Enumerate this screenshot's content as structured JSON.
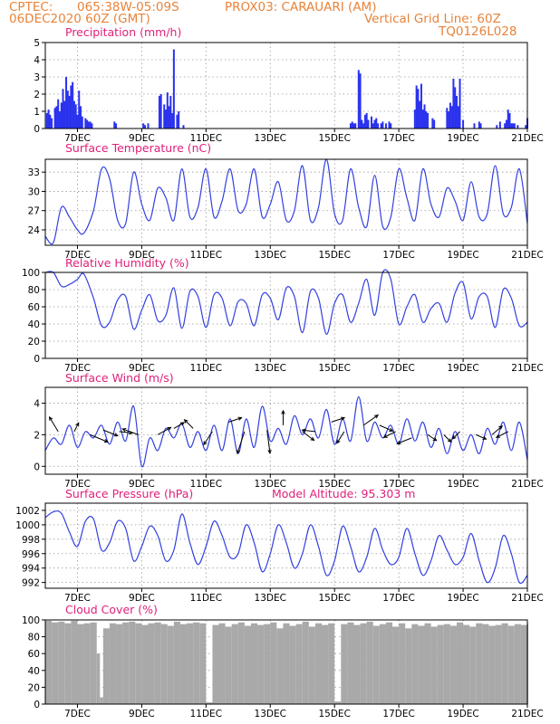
{
  "header": {
    "line1_left": "CPTEC:",
    "line1_coords": "065:38W-05:09S",
    "line1_station": "PROX03: CARAUARI (AM)",
    "line2_date": "06DEC2020 60Z (GMT)",
    "line2_grid": "Vertical Grid Line: 60Z",
    "line3_code": "TQ0126L028"
  },
  "colors": {
    "series": "#3340e0",
    "bar": "#2a32ee",
    "cloud": "#a9a9a9",
    "title": "#e0207a",
    "header": "#e8833a",
    "arrow": "#000000"
  },
  "x_axis": {
    "tick_labels": [
      "7DEC",
      "9DEC",
      "11DEC",
      "13DEC",
      "15DEC",
      "17DEC",
      "19DEC",
      "21DEC"
    ],
    "range_days": [
      6.0,
      21.0
    ]
  },
  "chart_data": [
    {
      "type": "bar",
      "title": "Precipitation (mm/h)",
      "ylim": [
        0,
        5
      ],
      "yticks": [
        "0",
        "1",
        "2",
        "3",
        "4",
        "5"
      ],
      "x": [
        6.05,
        6.1,
        6.15,
        6.2,
        6.3,
        6.35,
        6.4,
        6.45,
        6.5,
        6.55,
        6.6,
        6.65,
        6.7,
        6.75,
        6.8,
        6.85,
        6.9,
        6.95,
        7.0,
        7.05,
        7.1,
        7.15,
        7.25,
        7.3,
        7.35,
        7.4,
        7.45,
        8.15,
        8.2,
        9.05,
        9.1,
        9.2,
        9.55,
        9.6,
        9.7,
        9.75,
        9.8,
        9.85,
        9.9,
        9.95,
        10.0,
        10.1,
        10.15,
        10.3,
        15.5,
        15.55,
        15.6,
        15.65,
        15.75,
        15.8,
        15.85,
        15.9,
        15.95,
        16.0,
        16.05,
        16.15,
        16.2,
        16.25,
        16.3,
        16.35,
        16.45,
        16.5,
        16.6,
        16.7,
        16.75,
        17.5,
        17.55,
        17.6,
        17.65,
        17.7,
        17.75,
        17.8,
        17.85,
        17.9,
        18.05,
        18.1,
        18.5,
        18.55,
        18.6,
        18.65,
        18.7,
        18.75,
        18.8,
        18.85,
        18.9,
        19.0,
        19.35,
        19.5,
        19.55,
        20.05,
        20.15,
        20.3,
        20.35,
        20.4,
        20.45,
        20.5,
        20.55,
        20.6,
        20.7,
        20.95,
        21.0
      ],
      "values": [
        0.9,
        1.1,
        0.8,
        0.6,
        1.2,
        1.3,
        1.7,
        1.0,
        1.5,
        2.3,
        1.6,
        3.0,
        2.2,
        1.9,
        2.5,
        2.7,
        1.6,
        1.4,
        0.8,
        2.2,
        1.3,
        0.7,
        0.6,
        0.5,
        0.4,
        0.4,
        0.3,
        0.4,
        0.3,
        0.3,
        0.2,
        0.3,
        1.9,
        2.0,
        1.4,
        1.1,
        2.1,
        1.3,
        1.9,
        0.9,
        4.6,
        0.8,
        1.0,
        0.2,
        0.3,
        0.4,
        0.3,
        0.3,
        3.4,
        3.2,
        0.5,
        0.3,
        0.8,
        0.9,
        0.5,
        0.7,
        0.3,
        0.5,
        0.6,
        0.3,
        0.3,
        0.4,
        0.3,
        0.4,
        0.3,
        1.1,
        2.5,
        2.3,
        1.6,
        2.6,
        1.1,
        1.4,
        1.0,
        0.9,
        0.6,
        0.5,
        1.2,
        1.0,
        1.5,
        1.3,
        2.9,
        2.4,
        1.9,
        1.3,
        2.9,
        0.5,
        0.3,
        0.4,
        0.3,
        0.2,
        0.4,
        0.3,
        0.5,
        1.1,
        0.9,
        0.3,
        0.3,
        0.3,
        0.2,
        0.2,
        0.6
      ]
    },
    {
      "type": "line",
      "title": "Surface Temperature (nC)",
      "ylim": [
        21.6,
        35.0
      ],
      "yticks": [
        "24",
        "27",
        "30",
        "33"
      ],
      "x": [
        6.0,
        6.25,
        6.5,
        6.75,
        7.0,
        7.2,
        7.5,
        7.75,
        8.0,
        8.25,
        8.5,
        8.75,
        9.0,
        9.25,
        9.5,
        9.75,
        10.0,
        10.25,
        10.5,
        10.75,
        11.0,
        11.25,
        11.5,
        11.75,
        12.0,
        12.25,
        12.5,
        12.75,
        13.0,
        13.25,
        13.5,
        13.75,
        14.0,
        14.25,
        14.5,
        14.75,
        15.0,
        15.25,
        15.5,
        15.75,
        16.0,
        16.25,
        16.5,
        16.75,
        17.0,
        17.25,
        17.5,
        17.75,
        18.0,
        18.25,
        18.5,
        18.75,
        19.0,
        19.25,
        19.5,
        19.75,
        20.0,
        20.25,
        20.5,
        20.75,
        21.0
      ],
      "values": [
        23.0,
        22.0,
        27.5,
        26.0,
        24.0,
        23.5,
        27.0,
        33.5,
        32.0,
        25.5,
        25.0,
        33.0,
        28.0,
        25.5,
        30.5,
        29.0,
        25.5,
        33.5,
        26.0,
        27.5,
        33.5,
        26.0,
        28.5,
        33.5,
        27.0,
        28.0,
        33.5,
        26.0,
        28.0,
        31.5,
        25.5,
        27.0,
        34.0,
        25.5,
        27.5,
        35.0,
        26.5,
        25.5,
        33.5,
        27.5,
        24.5,
        32.5,
        24.5,
        26.0,
        33.5,
        29.0,
        25.5,
        33.5,
        28.0,
        26.0,
        30.5,
        28.5,
        25.5,
        31.5,
        26.0,
        26.5,
        34.0,
        26.5,
        27.5,
        33.5,
        25.0
      ]
    },
    {
      "type": "line",
      "title": "Relative Humidity (%)",
      "ylim": [
        0,
        100
      ],
      "yticks": [
        "0",
        "20",
        "40",
        "60",
        "80",
        "100"
      ],
      "x": [
        6.0,
        6.25,
        6.5,
        6.75,
        7.0,
        7.2,
        7.5,
        7.75,
        8.0,
        8.25,
        8.5,
        8.75,
        9.0,
        9.25,
        9.5,
        9.75,
        10.0,
        10.25,
        10.5,
        10.75,
        11.0,
        11.25,
        11.5,
        11.75,
        12.0,
        12.25,
        12.5,
        12.75,
        13.0,
        13.25,
        13.5,
        13.75,
        14.0,
        14.25,
        14.5,
        14.75,
        15.0,
        15.25,
        15.5,
        15.75,
        16.0,
        16.25,
        16.5,
        16.75,
        17.0,
        17.25,
        17.5,
        17.75,
        18.0,
        18.25,
        18.5,
        18.75,
        19.0,
        19.25,
        19.5,
        19.75,
        20.0,
        20.25,
        20.5,
        20.75,
        21.0
      ],
      "values": [
        100,
        100,
        84,
        86,
        92,
        98,
        70,
        38,
        42,
        68,
        72,
        34,
        56,
        74,
        44,
        50,
        82,
        35,
        78,
        72,
        36,
        74,
        70,
        38,
        66,
        64,
        38,
        74,
        70,
        45,
        82,
        72,
        30,
        78,
        70,
        28,
        64,
        74,
        42,
        64,
        92,
        50,
        100,
        92,
        40,
        60,
        74,
        42,
        58,
        64,
        42,
        76,
        88,
        46,
        72,
        72,
        36,
        80,
        70,
        38,
        42
      ]
    },
    {
      "type": "line",
      "title": "Surface Wind (m/s)",
      "ylim": [
        -0.5,
        5.0
      ],
      "yticks": [
        "0",
        "2",
        "4"
      ],
      "x": [
        6.0,
        6.25,
        6.5,
        6.75,
        7.0,
        7.25,
        7.5,
        7.75,
        8.0,
        8.25,
        8.5,
        8.75,
        9.0,
        9.25,
        9.5,
        9.75,
        10.0,
        10.25,
        10.5,
        10.75,
        11.0,
        11.25,
        11.5,
        11.75,
        12.0,
        12.25,
        12.5,
        12.75,
        13.0,
        13.25,
        13.5,
        13.75,
        14.0,
        14.25,
        14.5,
        14.75,
        15.0,
        15.25,
        15.5,
        15.75,
        16.0,
        16.25,
        16.5,
        16.75,
        17.0,
        17.25,
        17.5,
        17.75,
        18.0,
        18.25,
        18.5,
        18.75,
        19.0,
        19.25,
        19.5,
        19.75,
        20.0,
        20.25,
        20.5,
        20.75,
        21.0
      ],
      "values": [
        1.0,
        1.8,
        1.4,
        2.6,
        1.2,
        2.2,
        1.8,
        2.6,
        1.4,
        2.8,
        1.6,
        3.8,
        0.0,
        1.8,
        1.0,
        2.4,
        1.8,
        2.7,
        1.2,
        2.2,
        1.0,
        2.6,
        1.0,
        3.0,
        0.8,
        3.0,
        1.2,
        3.8,
        1.6,
        2.4,
        1.4,
        3.2,
        2.0,
        3.0,
        1.8,
        3.6,
        1.4,
        3.0,
        1.6,
        4.4,
        1.6,
        2.8,
        1.8,
        2.6,
        1.4,
        3.0,
        1.6,
        2.8,
        1.2,
        2.4,
        0.8,
        2.2,
        1.0,
        2.0,
        0.8,
        2.4,
        1.4,
        2.8,
        1.0,
        2.8,
        0.4
      ],
      "vectors": {
        "x": [
          6.4,
          6.9,
          7.4,
          7.8,
          8.3,
          8.9,
          9.5,
          10.0,
          10.6,
          11.2,
          11.7,
          12.2,
          12.9,
          13.4,
          14.0,
          14.4,
          14.9,
          15.3,
          15.9,
          16.4,
          16.9,
          17.4,
          17.9,
          18.4,
          18.9,
          19.4,
          19.9,
          20.4
        ],
        "y": [
          2.2,
          2.2,
          2.0,
          2.3,
          2.2,
          2.0,
          2.0,
          2.4,
          2.4,
          2.2,
          2.8,
          2.2,
          2.3,
          2.6,
          2.2,
          2.2,
          2.8,
          2.2,
          2.6,
          2.6,
          2.2,
          1.8,
          2.0,
          2.0,
          2.2,
          2.0,
          2.0,
          2.2
        ],
        "u": [
          -0.6,
          0.3,
          1.2,
          1.0,
          0.9,
          -1.1,
          0.9,
          0.7,
          -0.6,
          -0.6,
          0.9,
          -0.5,
          0.2,
          0.0,
          0.8,
          -0.9,
          0.9,
          -0.5,
          1.0,
          0.9,
          -0.8,
          -1.0,
          0.6,
          0.5,
          -0.5,
          0.7,
          0.7,
          -0.8
        ],
        "v": [
          1.0,
          0.6,
          -0.5,
          -0.4,
          -0.1,
          0.4,
          0.5,
          0.4,
          0.6,
          -0.9,
          0.3,
          -1.5,
          -1.6,
          1.0,
          -0.6,
          0.1,
          0.3,
          -0.8,
          0.7,
          -0.4,
          -0.4,
          -0.4,
          -0.4,
          -0.5,
          -0.5,
          -0.3,
          0.6,
          -0.4
        ]
      }
    },
    {
      "type": "line",
      "title": "Surface Pressure (hPa)",
      "annotation": "Model Altitude: 95.303 m",
      "ylim": [
        991.2,
        1003.0
      ],
      "yticks": [
        "992",
        "994",
        "996",
        "998",
        "1000",
        "1002"
      ],
      "x": [
        6.0,
        6.25,
        6.5,
        6.75,
        7.0,
        7.25,
        7.5,
        7.75,
        8.0,
        8.25,
        8.5,
        8.75,
        9.0,
        9.25,
        9.5,
        9.75,
        10.0,
        10.25,
        10.5,
        10.75,
        11.0,
        11.25,
        11.5,
        11.75,
        12.0,
        12.25,
        12.5,
        12.75,
        13.0,
        13.25,
        13.5,
        13.75,
        14.0,
        14.25,
        14.5,
        14.75,
        15.0,
        15.25,
        15.5,
        15.75,
        16.0,
        16.25,
        16.5,
        16.75,
        17.0,
        17.25,
        17.5,
        17.75,
        18.0,
        18.25,
        18.5,
        18.75,
        19.0,
        19.25,
        19.5,
        19.75,
        20.0,
        20.25,
        20.5,
        20.75,
        21.0
      ],
      "values": [
        1001.0,
        1001.8,
        1001.6,
        999.0,
        997.0,
        1000.5,
        1000.8,
        996.5,
        997.5,
        1000.5,
        999.5,
        995.0,
        997.0,
        999.8,
        998.5,
        995.0,
        996.5,
        1001.5,
        997.5,
        994.5,
        997.0,
        1000.5,
        998.5,
        995.5,
        996.0,
        1000.0,
        997.5,
        993.5,
        996.0,
        1000.0,
        997.5,
        994.0,
        996.0,
        1000.0,
        997.0,
        993.0,
        995.0,
        999.8,
        997.0,
        993.5,
        995.5,
        999.5,
        996.5,
        994.5,
        995.5,
        999.5,
        996.0,
        993.0,
        995.0,
        998.5,
        996.5,
        994.5,
        995.5,
        998.8,
        995.0,
        992.0,
        994.0,
        998.5,
        996.0,
        992.0,
        993.0
      ]
    },
    {
      "type": "bar",
      "title": "Cloud Cover (%)",
      "ylim": [
        0,
        100
      ],
      "yticks": [
        "0",
        "20",
        "40",
        "60",
        "80",
        "100"
      ],
      "x": [
        6.0,
        6.2,
        6.4,
        6.6,
        6.8,
        7.0,
        7.2,
        7.4,
        7.6,
        7.7,
        7.8,
        8.0,
        8.2,
        8.4,
        8.6,
        8.8,
        9.0,
        9.2,
        9.4,
        9.6,
        9.8,
        10.0,
        10.2,
        10.4,
        10.6,
        10.8,
        11.0,
        11.2,
        11.4,
        11.6,
        11.8,
        12.0,
        12.2,
        12.4,
        12.6,
        12.8,
        13.0,
        13.2,
        13.4,
        13.6,
        13.8,
        14.0,
        14.2,
        14.4,
        14.6,
        14.8,
        15.0,
        15.2,
        15.4,
        15.6,
        15.8,
        16.0,
        16.2,
        16.4,
        16.6,
        16.8,
        17.0,
        17.2,
        17.4,
        17.6,
        17.8,
        18.0,
        18.2,
        18.4,
        18.6,
        18.8,
        19.0,
        19.2,
        19.4,
        19.6,
        19.8,
        20.0,
        20.2,
        20.4,
        20.6,
        20.8,
        21.0
      ],
      "values": [
        99,
        97,
        98,
        96,
        99,
        95,
        96,
        97,
        60,
        8,
        90,
        96,
        95,
        97,
        98,
        96,
        94,
        96,
        97,
        95,
        93,
        98,
        95,
        96,
        97,
        96,
        2,
        94,
        96,
        92,
        95,
        97,
        93,
        96,
        94,
        95,
        97,
        90,
        96,
        93,
        95,
        98,
        92,
        96,
        94,
        96,
        3,
        95,
        97,
        94,
        96,
        98,
        93,
        95,
        97,
        92,
        96,
        90,
        95,
        93,
        96,
        92,
        94,
        95,
        93,
        97,
        94,
        92,
        96,
        95,
        93,
        94,
        96,
        93,
        95,
        94,
        96
      ]
    }
  ]
}
